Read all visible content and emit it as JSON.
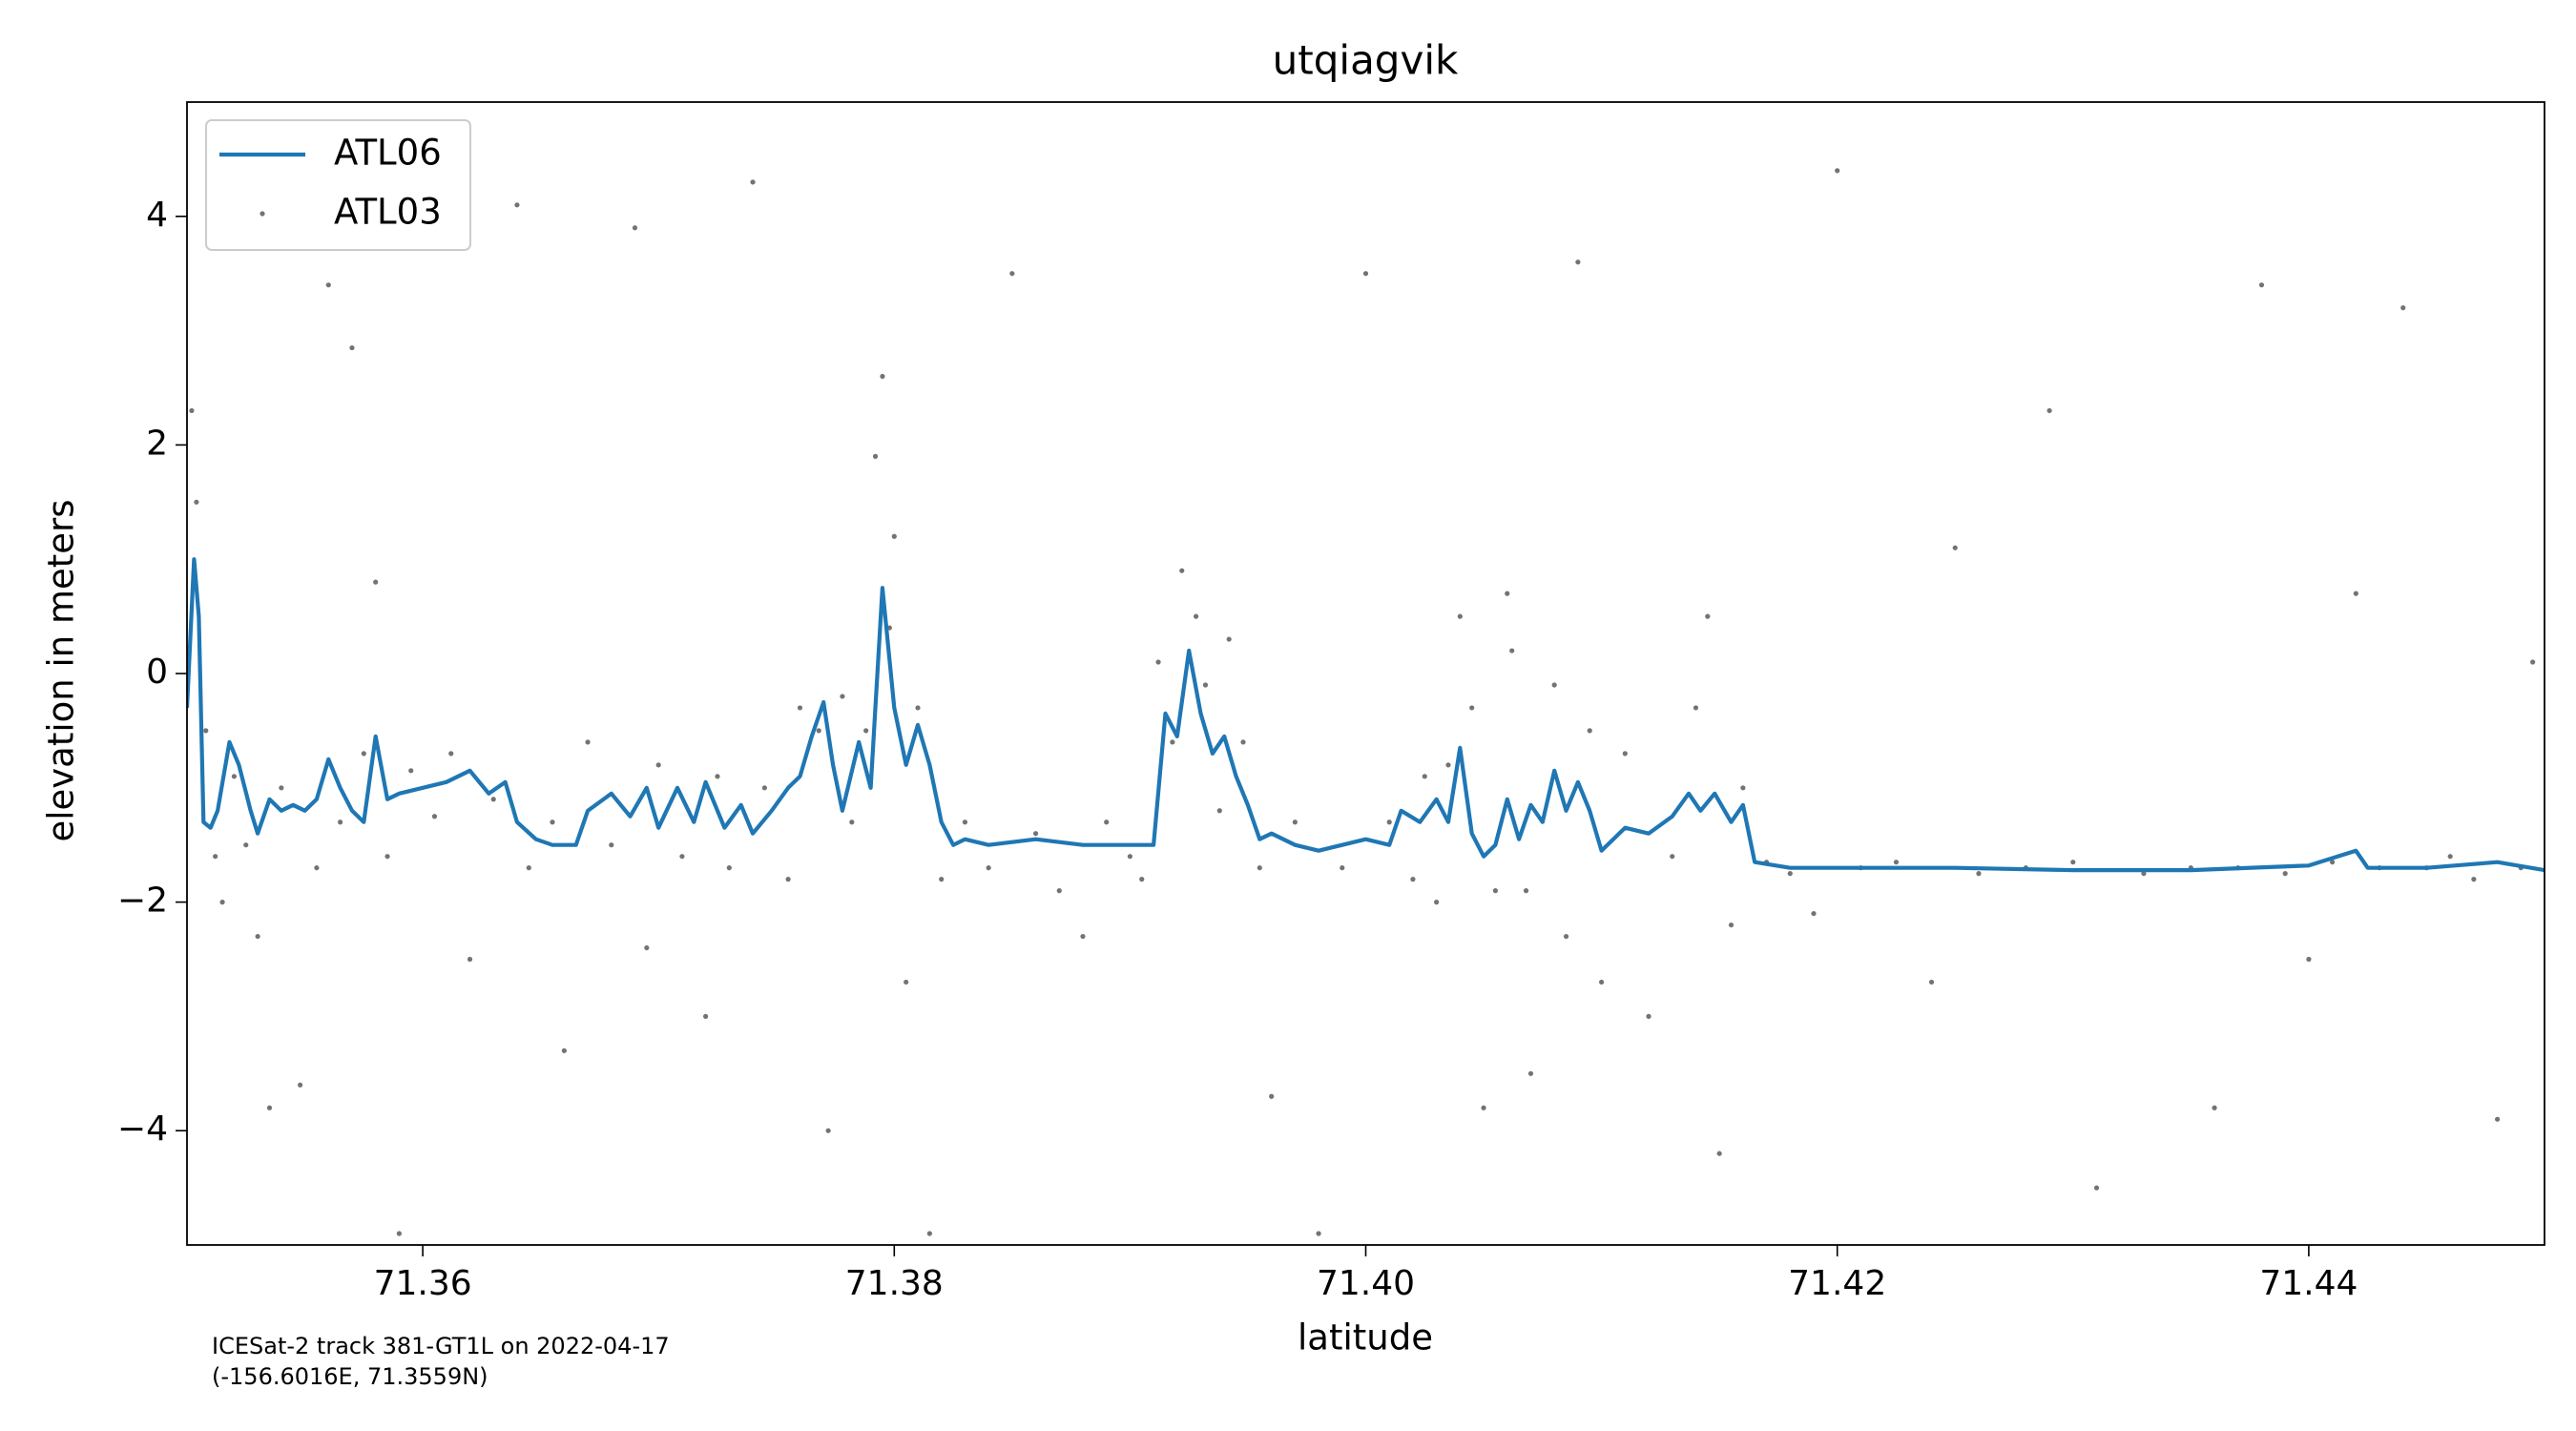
{
  "chart_data": {
    "type": "line",
    "title": "utqiagvik",
    "xlabel": "latitude",
    "ylabel": "elevation in meters",
    "annotations": [
      "ICESat-2 track 381-GT1L on 2022-04-17",
      "(-156.6016E, 71.3559N)"
    ],
    "xlim": [
      71.35,
      71.45
    ],
    "ylim": [
      -5,
      5
    ],
    "xticks": [
      71.36,
      71.38,
      {
        "value": 71.4,
        "label": "71.40"
      },
      71.42,
      71.44
    ],
    "yticks": [
      {
        "value": -4,
        "label": "−4"
      },
      {
        "value": -2,
        "label": "−2"
      },
      0,
      2,
      4
    ],
    "legend": "upper left",
    "grid": false,
    "series": [
      {
        "name": "ATL06",
        "type": "line",
        "color": "#1f77b4",
        "x": [
          71.35,
          71.3503,
          71.3505,
          71.3507,
          71.351,
          71.3513,
          71.3518,
          71.3522,
          71.3527,
          71.353,
          71.3535,
          71.354,
          71.3545,
          71.355,
          71.3555,
          71.356,
          71.3565,
          71.357,
          71.3575,
          71.358,
          71.3585,
          71.359,
          71.36,
          71.361,
          71.362,
          71.3628,
          71.3635,
          71.364,
          71.3648,
          71.3655,
          71.3665,
          71.367,
          71.368,
          71.3688,
          71.3695,
          71.37,
          71.3708,
          71.3715,
          71.372,
          71.3728,
          71.3735,
          71.374,
          71.3748,
          71.3755,
          71.376,
          71.3765,
          71.377,
          71.3774,
          71.3778,
          71.3785,
          71.379,
          71.3795,
          71.38,
          71.3805,
          71.381,
          71.3815,
          71.382,
          71.3825,
          71.383,
          71.384,
          71.386,
          71.388,
          71.39,
          71.391,
          71.3915,
          71.392,
          71.3925,
          71.393,
          71.3935,
          71.394,
          71.3945,
          71.395,
          71.3955,
          71.396,
          71.397,
          71.398,
          71.399,
          71.4,
          71.401,
          71.4015,
          71.4023,
          71.403,
          71.4035,
          71.404,
          71.4045,
          71.405,
          71.4055,
          71.406,
          71.4065,
          71.407,
          71.4075,
          71.408,
          71.4085,
          71.409,
          71.4095,
          71.41,
          71.411,
          71.412,
          71.413,
          71.4137,
          71.4142,
          71.4148,
          71.4155,
          71.416,
          71.4165,
          71.418,
          71.42,
          71.425,
          71.43,
          71.435,
          71.44,
          71.442,
          71.4425,
          71.445,
          71.448,
          71.45
        ],
        "values": [
          -0.3,
          1.0,
          0.5,
          -1.3,
          -1.35,
          -1.2,
          -0.6,
          -0.8,
          -1.2,
          -1.4,
          -1.1,
          -1.2,
          -1.15,
          -1.2,
          -1.1,
          -0.75,
          -1.0,
          -1.2,
          -1.3,
          -0.55,
          -1.1,
          -1.05,
          -1.0,
          -0.95,
          -0.85,
          -1.05,
          -0.95,
          -1.3,
          -1.45,
          -1.5,
          -1.5,
          -1.2,
          -1.05,
          -1.25,
          -1.0,
          -1.35,
          -1.0,
          -1.3,
          -0.95,
          -1.35,
          -1.15,
          -1.4,
          -1.2,
          -1.0,
          -0.9,
          -0.55,
          -0.25,
          -0.8,
          -1.2,
          -0.6,
          -1.0,
          0.75,
          -0.3,
          -0.8,
          -0.45,
          -0.8,
          -1.3,
          -1.5,
          -1.45,
          -1.5,
          -1.45,
          -1.5,
          -1.5,
          -1.5,
          -0.35,
          -0.55,
          0.2,
          -0.35,
          -0.7,
          -0.55,
          -0.9,
          -1.15,
          -1.45,
          -1.4,
          -1.5,
          -1.55,
          -1.5,
          -1.45,
          -1.5,
          -1.2,
          -1.3,
          -1.1,
          -1.3,
          -0.65,
          -1.4,
          -1.6,
          -1.5,
          -1.1,
          -1.45,
          -1.15,
          -1.3,
          -0.85,
          -1.2,
          -0.95,
          -1.2,
          -1.55,
          -1.35,
          -1.4,
          -1.25,
          -1.05,
          -1.2,
          -1.05,
          -1.3,
          -1.15,
          -1.65,
          -1.7,
          -1.7,
          -1.7,
          -1.72,
          -1.72,
          -1.68,
          -1.55,
          -1.7,
          -1.7,
          -1.65,
          -1.72
        ]
      },
      {
        "name": "ATL03",
        "type": "scatter",
        "color": "#000000",
        "x": [
          71.3502,
          71.3504,
          71.3508,
          71.3512,
          71.3515,
          71.352,
          71.3525,
          71.353,
          71.3535,
          71.354,
          71.3548,
          71.3555,
          71.356,
          71.3565,
          71.357,
          71.3575,
          71.358,
          71.3585,
          71.359,
          71.3595,
          71.3605,
          71.3612,
          71.362,
          71.363,
          71.364,
          71.3645,
          71.3655,
          71.366,
          71.367,
          71.368,
          71.369,
          71.3695,
          71.37,
          71.371,
          71.372,
          71.3725,
          71.373,
          71.374,
          71.3745,
          71.3755,
          71.376,
          71.3768,
          71.3772,
          71.3778,
          71.3782,
          71.3788,
          71.3792,
          71.3795,
          71.3798,
          71.38,
          71.3805,
          71.381,
          71.3815,
          71.382,
          71.383,
          71.384,
          71.385,
          71.386,
          71.387,
          71.388,
          71.389,
          71.39,
          71.3905,
          71.3912,
          71.3918,
          71.3922,
          71.3928,
          71.3932,
          71.3938,
          71.3942,
          71.3948,
          71.3955,
          71.396,
          71.397,
          71.398,
          71.399,
          71.4,
          71.401,
          71.402,
          71.4025,
          71.403,
          71.4035,
          71.404,
          71.4045,
          71.405,
          71.4055,
          71.406,
          71.4062,
          71.4068,
          71.407,
          71.408,
          71.4085,
          71.409,
          71.4095,
          71.41,
          71.411,
          71.412,
          71.413,
          71.414,
          71.4145,
          71.415,
          71.4155,
          71.416,
          71.417,
          71.418,
          71.419,
          71.42,
          71.421,
          71.4225,
          71.424,
          71.425,
          71.426,
          71.428,
          71.429,
          71.43,
          71.431,
          71.433,
          71.435,
          71.436,
          71.437,
          71.438,
          71.439,
          71.44,
          71.441,
          71.442,
          71.443,
          71.444,
          71.445,
          71.446,
          71.447,
          71.448,
          71.449,
          71.4495
        ],
        "values": [
          2.3,
          1.5,
          -0.5,
          -1.6,
          -2.0,
          -0.9,
          -1.5,
          -2.3,
          -3.8,
          -1.0,
          -3.6,
          -1.7,
          3.4,
          -1.3,
          2.85,
          -0.7,
          0.8,
          -1.6,
          -4.9,
          -0.85,
          -1.25,
          -0.7,
          -2.5,
          -1.1,
          4.1,
          -1.7,
          -1.3,
          -3.3,
          -0.6,
          -1.5,
          3.9,
          -2.4,
          -0.8,
          -1.6,
          -3.0,
          -0.9,
          -1.7,
          4.3,
          -1.0,
          -1.8,
          -0.3,
          -0.5,
          -4.0,
          -0.2,
          -1.3,
          -0.5,
          1.9,
          2.6,
          0.4,
          1.2,
          -2.7,
          -0.3,
          -4.9,
          -1.8,
          -1.3,
          -1.7,
          3.5,
          -1.4,
          -1.9,
          -2.3,
          -1.3,
          -1.6,
          -1.8,
          0.1,
          -0.6,
          0.9,
          0.5,
          -0.1,
          -1.2,
          0.3,
          -0.6,
          -1.7,
          -3.7,
          -1.3,
          -4.9,
          -1.7,
          3.5,
          -1.3,
          -1.8,
          -0.9,
          -2.0,
          -0.8,
          0.5,
          -0.3,
          -3.8,
          -1.9,
          0.7,
          0.2,
          -1.9,
          -3.5,
          -0.1,
          -2.3,
          3.6,
          -0.5,
          -2.7,
          -0.7,
          -3.0,
          -1.6,
          -0.3,
          0.5,
          -4.2,
          -2.2,
          -1.0,
          -1.65,
          -1.75,
          -2.1,
          4.4,
          -1.7,
          -1.65,
          -2.7,
          1.1,
          -1.75,
          -1.7,
          2.3,
          -1.65,
          -4.5,
          -1.75,
          -1.7,
          -3.8,
          -1.7,
          3.4,
          -1.75,
          -2.5,
          -1.65,
          0.7,
          -1.7,
          3.2,
          -1.7,
          -1.6,
          -1.8,
          -3.9,
          -1.7,
          0.1
        ]
      }
    ]
  }
}
